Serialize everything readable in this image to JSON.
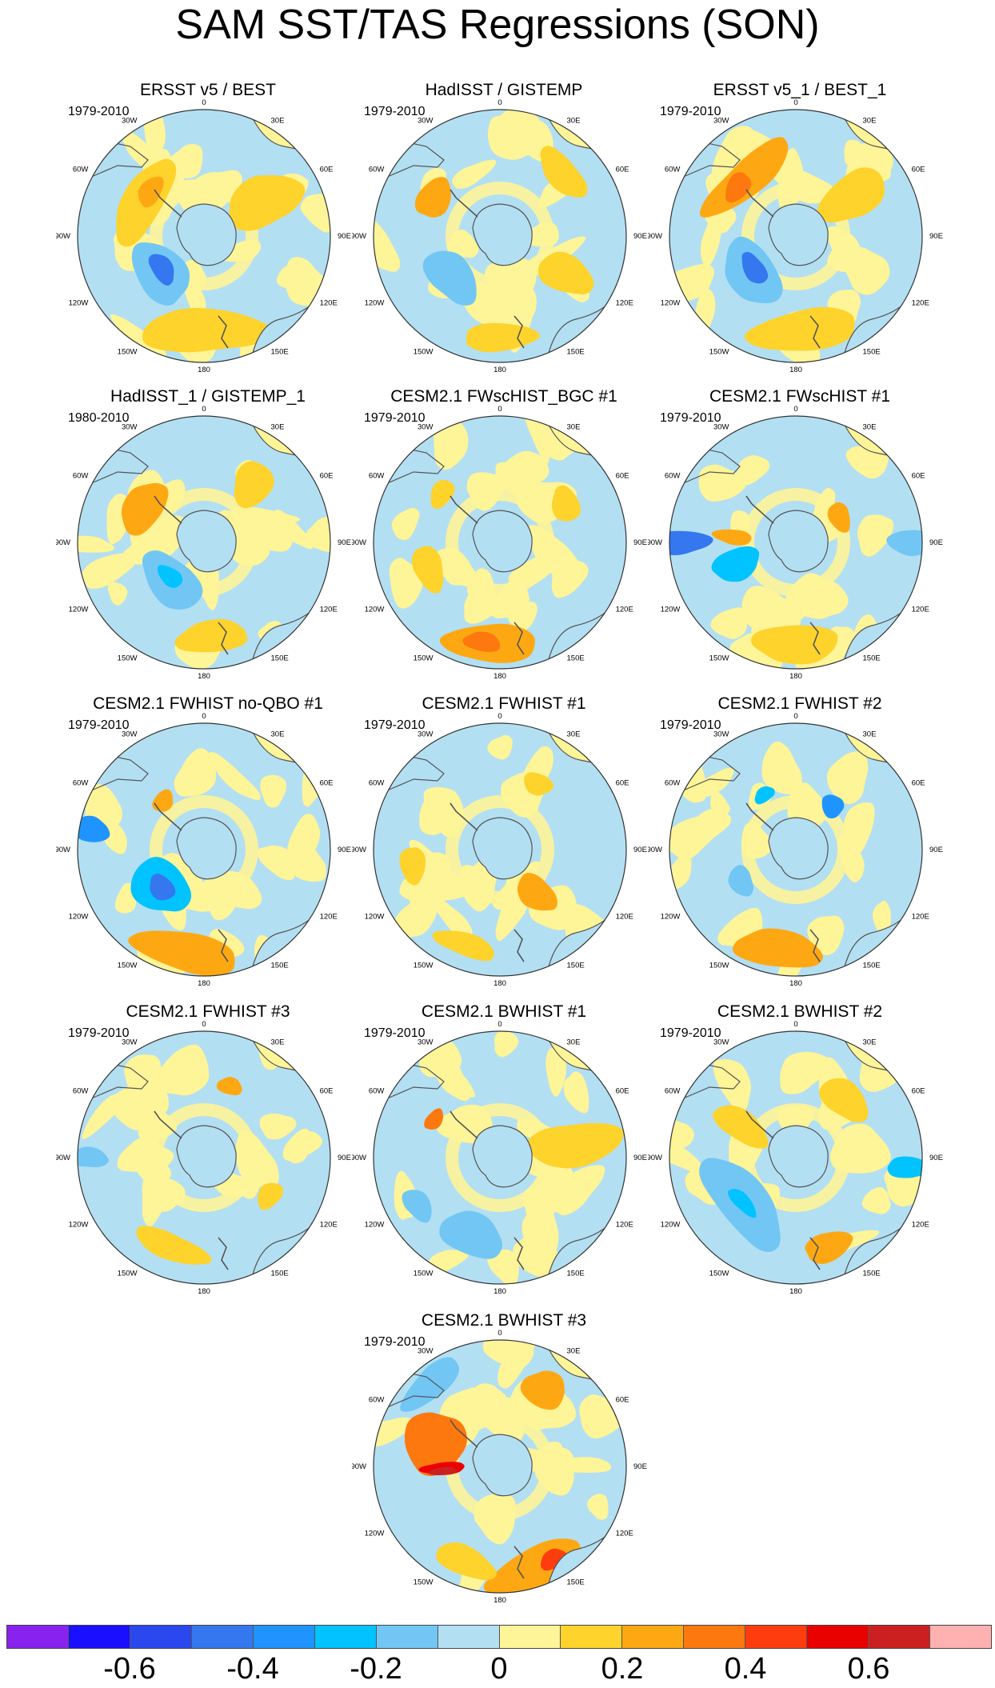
{
  "figure": {
    "title": "SAM SST/TAS Regressions (SON)"
  },
  "palette": {
    "blues": [
      "#8822ee",
      "#1a0fff",
      "#2a48ee",
      "#3477ee",
      "#1f94ff",
      "#00c3ff",
      "#72c6f4",
      "#b3dff2"
    ],
    "warms": [
      "#fef498",
      "#fdd32c",
      "#fda812",
      "#fd780f",
      "#fe3d0f",
      "#eb0000",
      "#cc2020",
      "#ffb0b0"
    ]
  },
  "lon_labels": [
    "0",
    "30E",
    "60E",
    "90E",
    "120E",
    "150E",
    "180",
    "150W",
    "120W",
    "90W",
    "60W",
    "30W"
  ],
  "panels": [
    {
      "title": "ERSST v5 / BEST",
      "period": "1979-2010"
    },
    {
      "title": "HadISST / GISTEMP",
      "period": "1979-2010"
    },
    {
      "title": "ERSST v5_1 / BEST_1",
      "period": "1979-2010"
    },
    {
      "title": "HadISST_1 / GISTEMP_1",
      "period": "1980-2010"
    },
    {
      "title": "CESM2.1 FWscHIST_BGC #1",
      "period": "1979-2010"
    },
    {
      "title": "CESM2.1 FWscHIST #1",
      "period": "1979-2010"
    },
    {
      "title": "CESM2.1 FWHIST no-QBO #1",
      "period": "1979-2010"
    },
    {
      "title": "CESM2.1 FWHIST #1",
      "period": "1979-2010"
    },
    {
      "title": "CESM2.1 FWHIST #2",
      "period": "1979-2010"
    },
    {
      "title": "CESM2.1 FWHIST #3",
      "period": "1979-2010"
    },
    {
      "title": "CESM2.1 BWHIST #1",
      "period": "1979-2010"
    },
    {
      "title": "CESM2.1 BWHIST #2",
      "period": "1979-2010"
    },
    {
      "title": "CESM2.1 BWHIST #3",
      "period": "1979-2010"
    }
  ],
  "colorbar": {
    "colors": [
      "#8822ee",
      "#1a0fff",
      "#2a48ee",
      "#3477ee",
      "#1f94ff",
      "#00c3ff",
      "#72c6f4",
      "#b3dff2",
      "#fef498",
      "#fdd32c",
      "#fda812",
      "#fd780f",
      "#fe3d0f",
      "#eb0000",
      "#cc2020",
      "#ffb0b0"
    ],
    "labels": [
      "-0.6",
      "-0.4",
      "-0.2",
      "0",
      "0.2",
      "0.4",
      "0.6"
    ]
  }
}
